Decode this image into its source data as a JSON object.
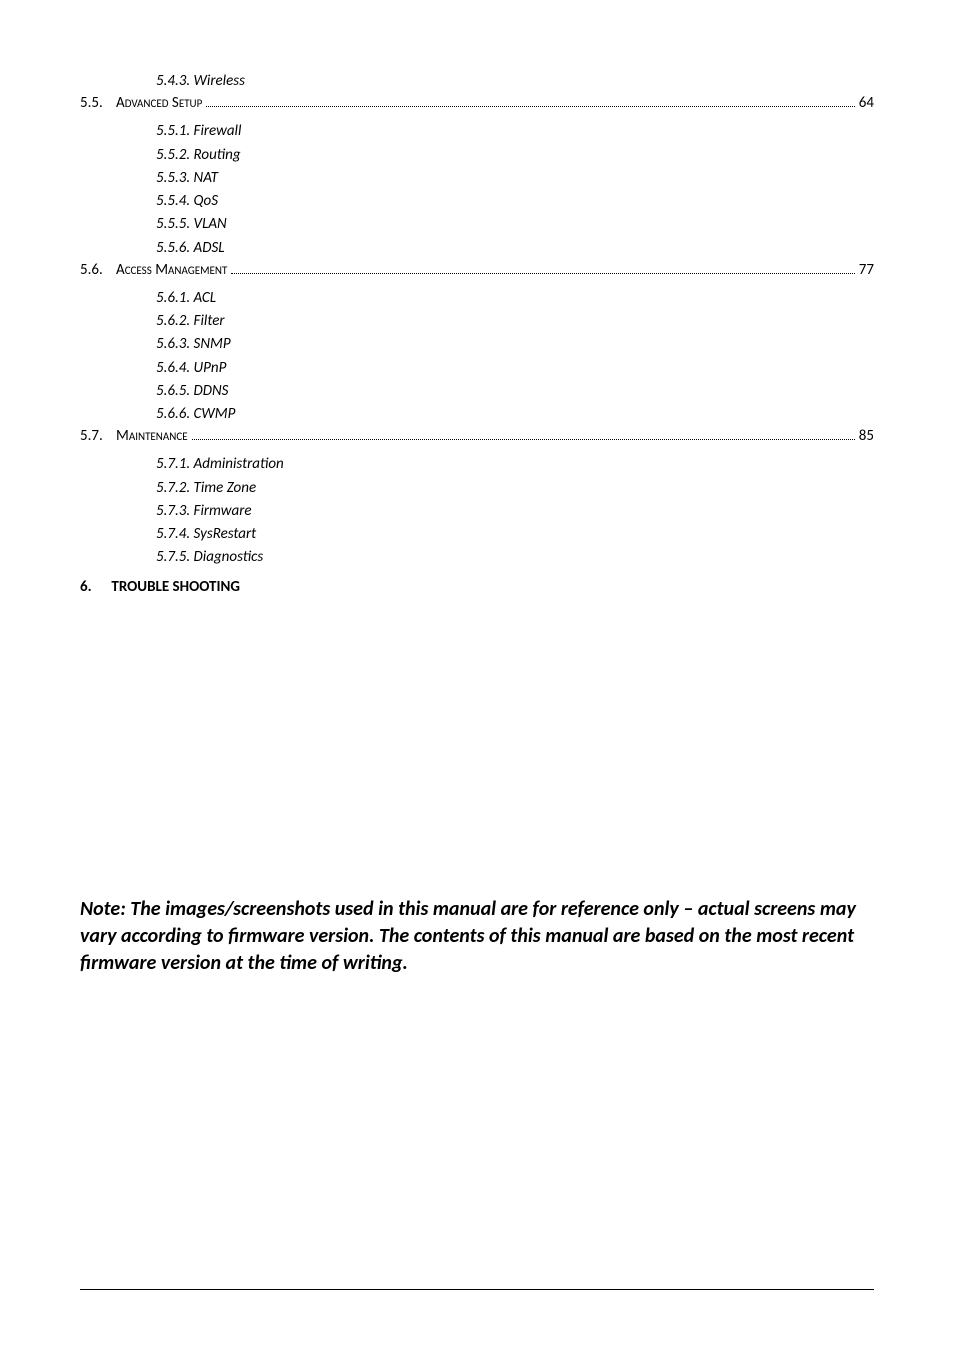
{
  "toc": {
    "pre_items": [
      "5.4.3. Wireless"
    ],
    "sections": [
      {
        "num": "5.5.",
        "label_plain": "A",
        "label_sc": "dvanced ",
        "label_plain2": "S",
        "label_sc2": "etup",
        "page": "64",
        "items": [
          "5.5.1. Firewall",
          "5.5.2. Routing",
          "5.5.3. NAT",
          "5.5.4. QoS",
          "5.5.5. VLAN",
          "5.5.6. ADSL"
        ]
      },
      {
        "num": "5.6.",
        "label_plain": "A",
        "label_sc": "ccess ",
        "label_plain2": "M",
        "label_sc2": "anagement",
        "page": "77",
        "items": [
          "5.6.1. ACL",
          "5.6.2. Filter",
          "5.6.3. SNMP",
          "5.6.4. UPnP",
          "5.6.5. DDNS",
          "5.6.6. CWMP"
        ]
      },
      {
        "num": "5.7.",
        "label_plain": "M",
        "label_sc": "aintenance",
        "label_plain2": "",
        "label_sc2": "",
        "page": "85",
        "items": [
          "5.7.1. Administration",
          "5.7.2. Time Zone",
          "5.7.3. Firmware",
          "5.7.4. SysRestart",
          "5.7.5. Diagnostics"
        ]
      }
    ],
    "chapter": {
      "num": "6.",
      "title": "TROUBLE SHOOTING"
    }
  },
  "note": "Note:  The images/screenshots used in this manual are for reference only – actual screens may vary according to firmware version. The contents of this manual are based on the most recent firmware version at the time of writing."
}
